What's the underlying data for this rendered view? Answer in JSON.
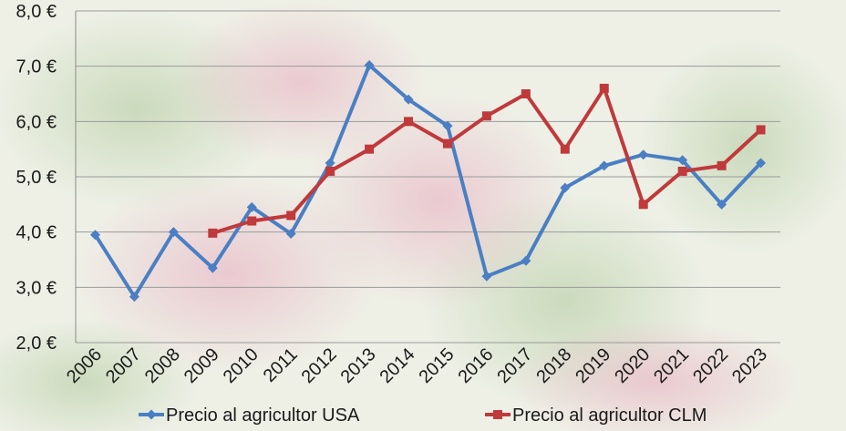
{
  "chart_data": {
    "type": "line",
    "title": "",
    "xlabel": "",
    "ylabel": "",
    "categories": [
      "2006",
      "2007",
      "2008",
      "2009",
      "2010",
      "2011",
      "2012",
      "2013",
      "2014",
      "2015",
      "2016",
      "2017",
      "2018",
      "2019",
      "2020",
      "2021",
      "2022",
      "2023"
    ],
    "ylim": [
      2.0,
      8.0
    ],
    "yticks": [
      2.0,
      3.0,
      4.0,
      5.0,
      6.0,
      7.0,
      8.0
    ],
    "ytick_labels": [
      "2,0 €",
      "3,0 €",
      "4,0 €",
      "5,0 €",
      "6,0 €",
      "7,0 €",
      "8,0 €"
    ],
    "grid": true,
    "legend_position": "bottom",
    "series": [
      {
        "name": "Precio al agricultor USA",
        "color": "#4a7fc4",
        "marker": "diamond",
        "values": [
          3.95,
          2.83,
          4.0,
          3.35,
          4.45,
          3.97,
          5.25,
          7.02,
          6.4,
          5.92,
          3.2,
          3.48,
          4.8,
          5.2,
          5.4,
          5.3,
          4.5,
          5.25
        ]
      },
      {
        "name": "Precio al agricultor CLM",
        "color": "#c0393b",
        "marker": "square",
        "values": [
          null,
          null,
          null,
          3.98,
          4.2,
          4.3,
          5.1,
          5.5,
          6.0,
          5.6,
          6.1,
          6.5,
          5.5,
          6.6,
          4.5,
          5.1,
          5.2,
          5.85
        ]
      }
    ]
  }
}
